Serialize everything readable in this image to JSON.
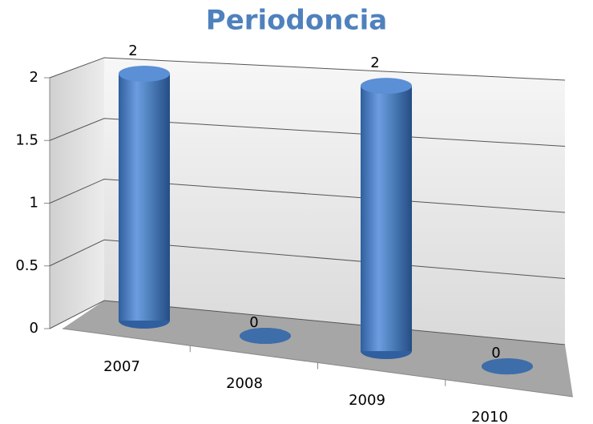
{
  "chart_data": {
    "type": "bar",
    "title": "Periodoncia",
    "categories": [
      "2007",
      "2008",
      "2009",
      "2010"
    ],
    "values": [
      2,
      0,
      2,
      0
    ],
    "color": "#4f81bd",
    "ylim": [
      0,
      2
    ],
    "yticks": [
      0,
      0.5,
      1,
      1.5,
      2
    ],
    "grid": true
  }
}
